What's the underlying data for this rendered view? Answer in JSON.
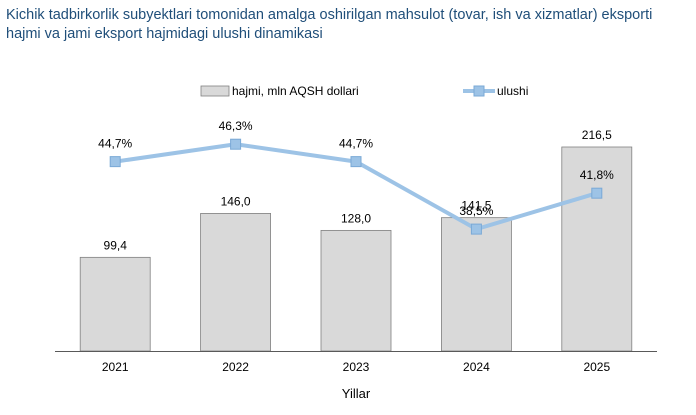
{
  "title": "Kichik tadbirkorlik subyektlari tomonidan amalga oshirilgan mahsulot (tovar, ish va xizmatlar) eksporti hajmi va  jami eksport hajmidagi ulushi dinamikasi",
  "colors": {
    "title": "#1f4e79",
    "bar_fill": "#d9d9d9",
    "bar_stroke": "#808080",
    "line": "#9dc3e6",
    "marker": "#9dc3e6",
    "marker_stroke": "#7aa9d6",
    "axis": "#595959",
    "text": "#000000"
  },
  "chart_data": {
    "type": "bar",
    "categories": [
      "2021",
      "2022",
      "2023",
      "2024",
      "2025"
    ],
    "xlabel": "Yillar",
    "ylabel": "",
    "legend_placement": "top",
    "grid": false,
    "series": [
      {
        "name": "hajmi, mln AQSH dollari",
        "type": "bar",
        "values": [
          99.4,
          146.0,
          128.0,
          141.5,
          216.5
        ],
        "labels": [
          "99,4",
          "146,0",
          "128,0",
          "141,5",
          "216,5"
        ],
        "ylim": [
          0,
          216.5
        ]
      },
      {
        "name": "ulushi",
        "type": "line",
        "values": [
          44.7,
          46.3,
          44.7,
          38.5,
          41.8
        ],
        "labels": [
          "44,7%",
          "46,3%",
          "44,7%",
          "38,5%",
          "41,8%"
        ],
        "ylim": [
          27.3,
          52.2
        ]
      }
    ]
  }
}
